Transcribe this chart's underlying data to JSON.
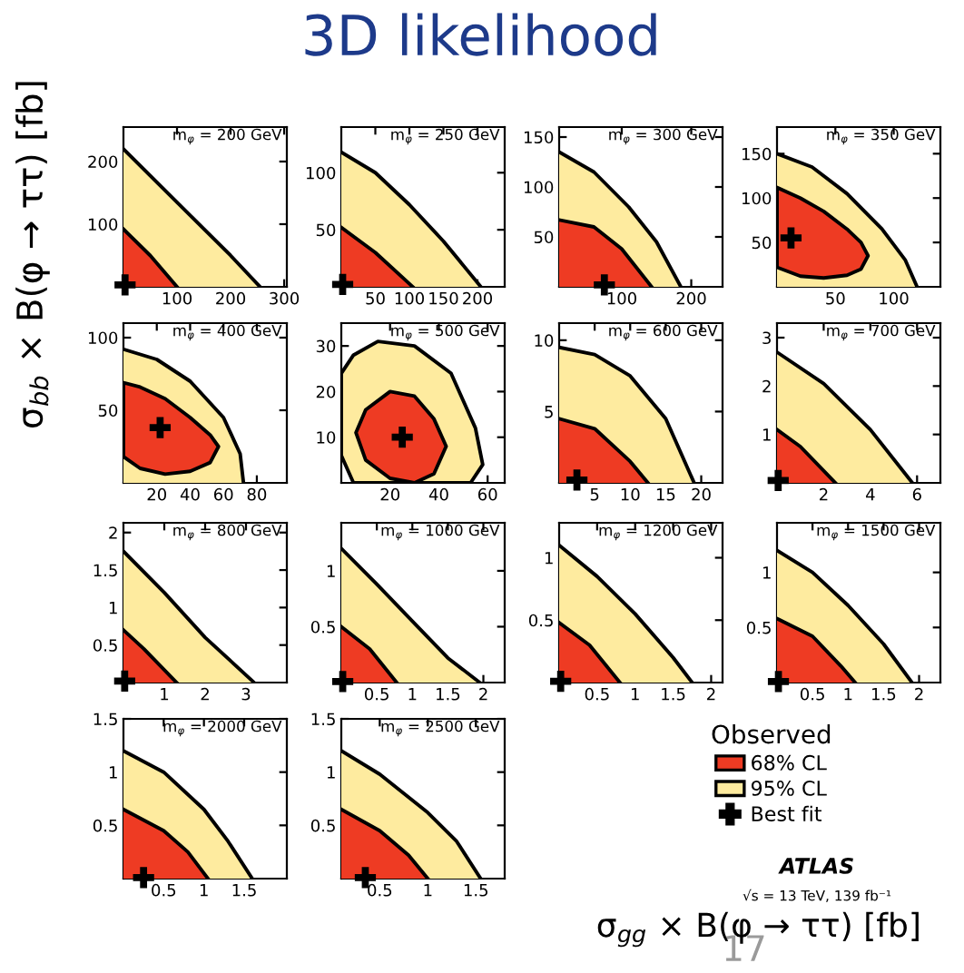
{
  "chart_data": [
    {
      "type": "area",
      "title": "m$_{φ}$ = 200 GeV",
      "ylabel": "σ$_{bb}$ × B(φ → ττ) [fb]",
      "annotations": [
        "3D likelihood",
        "17"
      ],
      "xlim": [
        0,
        305
      ],
      "ylim": [
        0,
        255
      ],
      "xticks": [
        100,
        200,
        300
      ],
      "yticks": [
        100,
        200
      ],
      "series": [
        {
          "color": "#ee3b23",
          "x": [
            0,
            50,
            100
          ],
          "values": [
            92,
            50,
            0
          ]
        },
        {
          "color": "#feeb9f",
          "x": [
            0,
            100,
            200,
            255
          ],
          "values": [
            220,
            135,
            50,
            0
          ]
        },
        {
          "type": "scatter",
          "marker": "cross",
          "color": "#000000",
          "x": [
            3
          ],
          "values": [
            3
          ]
        }
      ]
    },
    {
      "type": "area",
      "title": "m$_{φ}$ = 250 GeV",
      "xlim": [
        0,
        240
      ],
      "ylim": [
        0,
        140
      ],
      "xticks": [
        50,
        100,
        150,
        200
      ],
      "yticks": [
        50,
        100
      ],
      "series": [
        {
          "color": "#ee3b23",
          "x": [
            0,
            50,
            105
          ],
          "values": [
            52,
            30,
            0
          ]
        },
        {
          "color": "#feeb9f",
          "x": [
            0,
            50,
            100,
            150,
            205
          ],
          "values": [
            118,
            100,
            72,
            40,
            0
          ]
        },
        {
          "type": "scatter",
          "marker": "cross",
          "color": "#000000",
          "x": [
            2
          ],
          "values": [
            2
          ]
        }
      ]
    },
    {
      "type": "area",
      "title": "m$_{φ}$ = 300 GeV",
      "xlim": [
        10,
        245
      ],
      "ylim": [
        0,
        160
      ],
      "xticks": [
        100,
        200
      ],
      "yticks": [
        50,
        100,
        150
      ],
      "series": [
        {
          "color": "#ee3b23",
          "x": [
            10,
            60,
            100,
            143
          ],
          "values": [
            67,
            60,
            38,
            0
          ]
        },
        {
          "color": "#feeb9f",
          "x": [
            10,
            60,
            110,
            150,
            185
          ],
          "values": [
            135,
            115,
            80,
            45,
            0
          ]
        },
        {
          "type": "scatter",
          "marker": "cross",
          "color": "#000000",
          "x": [
            75
          ],
          "values": [
            2
          ]
        }
      ]
    },
    {
      "type": "area",
      "title": "m$_{φ}$ = 350 GeV",
      "xlim": [
        0,
        140
      ],
      "ylim": [
        0,
        180
      ],
      "xticks": [
        50,
        100
      ],
      "yticks": [
        50,
        100,
        150
      ],
      "series": [
        {
          "color": "#ee3b23",
          "x": [
            0,
            20,
            40,
            60,
            72,
            78,
            72,
            60,
            40,
            20,
            0
          ],
          "values": [
            112,
            100,
            85,
            65,
            50,
            35,
            20,
            13,
            10,
            12,
            22
          ]
        },
        {
          "color": "#feeb9f",
          "x": [
            0,
            30,
            60,
            90,
            110,
            120
          ],
          "values": [
            150,
            135,
            105,
            65,
            30,
            0
          ]
        },
        {
          "type": "scatter",
          "marker": "cross",
          "color": "#000000",
          "x": [
            12
          ],
          "values": [
            55
          ]
        }
      ]
    },
    {
      "type": "area",
      "title": "m$_{φ}$ = 400 GeV",
      "xlim": [
        0,
        98
      ],
      "ylim": [
        0,
        110
      ],
      "xticks": [
        20,
        40,
        60,
        80
      ],
      "yticks": [
        50,
        100
      ],
      "series": [
        {
          "color": "#ee3b23",
          "x": [
            0,
            10,
            25,
            40,
            52,
            57,
            52,
            40,
            25,
            10,
            0
          ],
          "values": [
            69,
            66,
            58,
            45,
            33,
            25,
            14,
            8,
            6,
            10,
            18
          ]
        },
        {
          "color": "#feeb9f",
          "x": [
            0,
            20,
            40,
            60,
            70,
            72
          ],
          "values": [
            92,
            85,
            70,
            45,
            20,
            0
          ]
        },
        {
          "type": "scatter",
          "marker": "cross",
          "color": "#000000",
          "x": [
            22
          ],
          "values": [
            38
          ]
        }
      ]
    },
    {
      "type": "area",
      "title": "m$_{φ}$ = 500 GeV",
      "xlim": [
        0,
        67
      ],
      "ylim": [
        0,
        35
      ],
      "xticks": [
        20,
        40,
        60
      ],
      "yticks": [
        10,
        20,
        30
      ],
      "series": [
        {
          "color": "#ee3b23",
          "x": [
            6,
            10,
            20,
            30,
            38,
            43,
            38,
            30,
            20,
            10
          ],
          "values": [
            11,
            16,
            20,
            19,
            14,
            8,
            2,
            0,
            1,
            5
          ]
        },
        {
          "color": "#feeb9f",
          "x": [
            0,
            5,
            15,
            30,
            45,
            55,
            58,
            53,
            5,
            0
          ],
          "values": [
            24,
            28,
            31,
            30,
            24,
            12,
            4,
            0,
            0,
            6
          ]
        },
        {
          "type": "scatter",
          "marker": "cross",
          "color": "#000000",
          "x": [
            25
          ],
          "values": [
            10
          ]
        }
      ]
    },
    {
      "type": "area",
      "title": "m$_{φ}$ = 600 GeV",
      "xlim": [
        0,
        23
      ],
      "ylim": [
        0,
        11.2
      ],
      "xticks": [
        5,
        10,
        15,
        20
      ],
      "yticks": [
        5,
        10
      ],
      "series": [
        {
          "color": "#ee3b23",
          "x": [
            0,
            5,
            10,
            12.5
          ],
          "values": [
            4.5,
            3.8,
            1.5,
            0
          ]
        },
        {
          "color": "#feeb9f",
          "x": [
            0,
            5,
            10,
            15,
            19
          ],
          "values": [
            9.5,
            9,
            7.5,
            4.5,
            0
          ]
        },
        {
          "type": "scatter",
          "marker": "cross",
          "color": "#000000",
          "x": [
            2.5
          ],
          "values": [
            0.2
          ]
        }
      ]
    },
    {
      "type": "area",
      "title": "m$_{φ}$ = 700 GeV",
      "xlim": [
        0,
        7
      ],
      "ylim": [
        0,
        3.3
      ],
      "xticks": [
        2,
        4,
        6
      ],
      "yticks": [
        1,
        2,
        3
      ],
      "series": [
        {
          "color": "#ee3b23",
          "x": [
            0,
            1,
            2.5
          ],
          "values": [
            1.1,
            0.75,
            0
          ]
        },
        {
          "color": "#feeb9f",
          "x": [
            0,
            2,
            4,
            5.8
          ],
          "values": [
            2.7,
            2.05,
            1.1,
            0
          ]
        },
        {
          "type": "scatter",
          "marker": "cross",
          "color": "#000000",
          "x": [
            0.05
          ],
          "values": [
            0.05
          ]
        }
      ]
    },
    {
      "type": "area",
      "title": "m$_{φ}$ = 800 GeV",
      "xlim": [
        0,
        4
      ],
      "ylim": [
        0,
        2.13
      ],
      "xticks": [
        1,
        2,
        3
      ],
      "yticks": [
        0.5,
        1,
        1.5,
        2
      ],
      "series": [
        {
          "color": "#ee3b23",
          "x": [
            0,
            0.5,
            1.3
          ],
          "values": [
            0.7,
            0.45,
            0
          ]
        },
        {
          "color": "#feeb9f",
          "x": [
            0,
            1,
            2,
            3.2
          ],
          "values": [
            1.75,
            1.2,
            0.6,
            0
          ]
        },
        {
          "type": "scatter",
          "marker": "cross",
          "color": "#000000",
          "x": [
            0.03
          ],
          "values": [
            0.02
          ]
        }
      ]
    },
    {
      "type": "area",
      "title": "m$_{φ}$ = 1000 GeV",
      "xlim": [
        0,
        2.3
      ],
      "ylim": [
        0,
        1.43
      ],
      "xticks": [
        0.5,
        1,
        1.5,
        2
      ],
      "yticks": [
        0.5,
        1
      ],
      "series": [
        {
          "color": "#ee3b23",
          "x": [
            0,
            0.4,
            0.78
          ],
          "values": [
            0.5,
            0.3,
            0
          ]
        },
        {
          "color": "#feeb9f",
          "x": [
            0,
            0.5,
            1,
            1.5,
            1.95
          ],
          "values": [
            1.2,
            0.88,
            0.55,
            0.22,
            0
          ]
        },
        {
          "type": "scatter",
          "marker": "cross",
          "color": "#000000",
          "x": [
            0.02
          ],
          "values": [
            0.01
          ]
        }
      ]
    },
    {
      "type": "area",
      "title": "m$_{φ}$ = 1200 GeV",
      "xlim": [
        0,
        2.15
      ],
      "ylim": [
        0,
        1.28
      ],
      "xticks": [
        0.5,
        1,
        1.5,
        2
      ],
      "yticks": [
        0.5,
        1
      ],
      "series": [
        {
          "color": "#ee3b23",
          "x": [
            0,
            0.4,
            0.8
          ],
          "values": [
            0.48,
            0.3,
            0
          ]
        },
        {
          "color": "#feeb9f",
          "x": [
            0,
            0.5,
            1,
            1.5,
            1.75
          ],
          "values": [
            1.1,
            0.85,
            0.55,
            0.2,
            0
          ]
        },
        {
          "type": "scatter",
          "marker": "cross",
          "color": "#000000",
          "x": [
            0.02
          ],
          "values": [
            0.01
          ]
        }
      ]
    },
    {
      "type": "area",
      "title": "m$_{φ}$ = 1500 GeV",
      "xlim": [
        0,
        2.3
      ],
      "ylim": [
        0,
        1.45
      ],
      "xticks": [
        0.5,
        1,
        1.5,
        2
      ],
      "yticks": [
        0.5,
        1
      ],
      "series": [
        {
          "color": "#ee3b23",
          "x": [
            0,
            0.5,
            0.9,
            1.1
          ],
          "values": [
            0.58,
            0.42,
            0.15,
            0
          ]
        },
        {
          "color": "#feeb9f",
          "x": [
            0,
            0.5,
            1,
            1.5,
            1.9
          ],
          "values": [
            1.2,
            1.0,
            0.7,
            0.35,
            0
          ]
        },
        {
          "type": "scatter",
          "marker": "cross",
          "color": "#000000",
          "x": [
            0.02
          ],
          "values": [
            0.01
          ]
        }
      ]
    },
    {
      "type": "area",
      "title": "m$_{φ}$ = 2000 GeV",
      "xlim": [
        0,
        2.03
      ],
      "ylim": [
        0,
        1.5
      ],
      "xticks": [
        0.5,
        1,
        1.5
      ],
      "yticks": [
        0.5,
        1,
        1.5
      ],
      "series": [
        {
          "color": "#ee3b23",
          "x": [
            0,
            0.5,
            0.8,
            1.05
          ],
          "values": [
            0.65,
            0.45,
            0.25,
            0
          ]
        },
        {
          "color": "#feeb9f",
          "x": [
            0,
            0.5,
            1,
            1.3,
            1.6
          ],
          "values": [
            1.2,
            1.0,
            0.65,
            0.35,
            0
          ]
        },
        {
          "type": "scatter",
          "marker": "cross",
          "color": "#000000",
          "x": [
            0.25
          ],
          "values": [
            0.01
          ]
        }
      ]
    },
    {
      "type": "area",
      "title": "m$_{φ}$ = 2500 GeV",
      "xlabel": "σ$_{gg}$ × B(φ → ττ) [fb]",
      "legend": "right",
      "legend_title": "Observed",
      "annotations": [
        "ATLAS",
        "√s = 13 TeV, 139 fb⁻¹"
      ],
      "xlim": [
        0.1,
        1.8
      ],
      "ylim": [
        0,
        1.5
      ],
      "xticks": [
        0.5,
        1,
        1.5
      ],
      "yticks": [
        0.5,
        1,
        1.5
      ],
      "series": [
        {
          "name": "68% CL",
          "color": "#ee3b23",
          "x": [
            0.1,
            0.5,
            0.8,
            1.0
          ],
          "values": [
            0.65,
            0.45,
            0.22,
            0
          ]
        },
        {
          "name": "95% CL",
          "color": "#feeb9f",
          "x": [
            0.1,
            0.5,
            1,
            1.3,
            1.55
          ],
          "values": [
            1.2,
            0.98,
            0.62,
            0.35,
            0
          ]
        },
        {
          "name": "Best fit",
          "type": "scatter",
          "marker": "cross",
          "color": "#000000",
          "x": [
            0.35
          ],
          "values": [
            0.01
          ]
        }
      ]
    }
  ]
}
